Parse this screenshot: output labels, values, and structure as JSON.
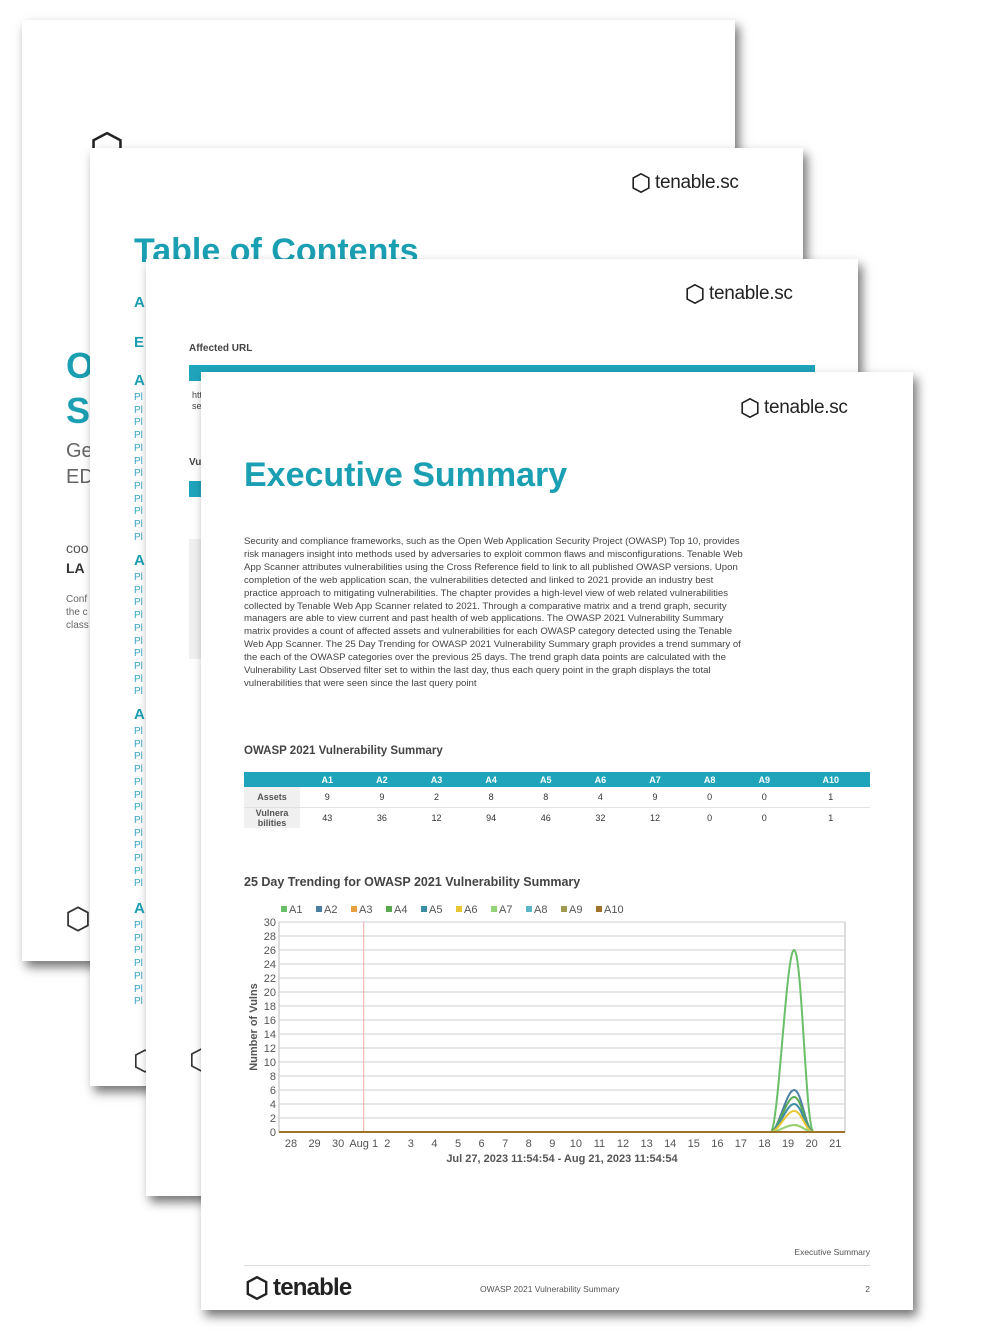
{
  "brand": {
    "name": "tenable.sc",
    "footer_name": "tenable",
    "accent": "#1fa4bb",
    "title_color": "#1b9fb3"
  },
  "page_cover": {
    "letters": [
      "O",
      "S"
    ],
    "subtitle_fragments": [
      "Ge",
      "ED"
    ],
    "meta_fragments": [
      "coo",
      "LA"
    ],
    "footer_fragments": [
      "Conf",
      "the c",
      "class"
    ]
  },
  "page_toc": {
    "heading": "Table of Contents",
    "letters": [
      "A",
      "E",
      "A",
      "A",
      "A",
      "A"
    ],
    "item_prefix": "Pl"
  },
  "page_detail": {
    "section_label": "Affected URL",
    "row_prefixes": [
      "htt",
      "se"
    ],
    "vul_fragment": "Vu"
  },
  "page_exec": {
    "title": "Executive Summary",
    "body": "Security and compliance frameworks, such as the Open Web Application Security Project (OWASP) Top 10, provides risk managers insight into methods used by adversaries to exploit common flaws and misconfigurations. Tenable Web App Scanner attributes vulnerabilities using the Cross Reference field to link to all published OWASP versions. Upon completion of the web application scan, the vulnerabilities detected and linked to 2021 provide an industry best practice approach to mitigating vulnerabilities. The chapter provides a high-level view of web related vulnerabilities collected by Tenable Web App Scanner related to 2021. Through a comparative matrix and a trend graph, security managers are able to view current and past health of web applications. The OWASP 2021 Vulnerability Summary matrix provides a count of affected assets and vulnerabilities for each OWASP category detected using the Tenable Web App Scanner. The 25 Day Trending for OWASP 2021 Vulnerability Summary graph provides a trend summary of the each of the OWASP categories over the previous 25 days. The trend graph data points are calculated with the Vulnerability Last Observed filter set to within the last day, thus each query point in the graph displays the total vulnerabilities that were seen since the last query point",
    "matrix_title": "OWASP 2021 Vulnerability Summary",
    "matrix": {
      "columns": [
        "A1",
        "A2",
        "A3",
        "A4",
        "A5",
        "A6",
        "A7",
        "A8",
        "A9",
        "A10"
      ],
      "rows": [
        {
          "label": "Assets",
          "values": [
            "9",
            "9",
            "2",
            "8",
            "8",
            "4",
            "9",
            "0",
            "0",
            "1"
          ]
        },
        {
          "label": "Vulnera bilities",
          "values": [
            "43",
            "36",
            "12",
            "94",
            "46",
            "32",
            "12",
            "0",
            "0",
            "1"
          ]
        }
      ]
    },
    "chart_title": "25 Day Trending for OWASP 2021 Vulnerability Summary",
    "footer_section": "Executive Summary",
    "footer_doc": "OWASP 2021 Vulnerability Summary",
    "page_number": "2"
  },
  "chart_data": {
    "type": "line",
    "title": "25 Day Trending for OWASP 2021 Vulnerability Summary",
    "xlabel": "Jul 27, 2023 11:54:54 - Aug 21, 2023 11:54:54",
    "ylabel": "Number of Vulns",
    "ylim": [
      0,
      30
    ],
    "yticks": [
      0,
      2,
      4,
      6,
      8,
      10,
      12,
      14,
      16,
      18,
      20,
      22,
      24,
      26,
      28,
      30
    ],
    "x_ticks": [
      "28",
      "29",
      "30",
      "Aug 1",
      "2",
      "3",
      "4",
      "5",
      "6",
      "7",
      "8",
      "9",
      "10",
      "11",
      "12",
      "13",
      "14",
      "15",
      "16",
      "17",
      "18",
      "19",
      "20",
      "21"
    ],
    "marker_x": "Aug 1",
    "grid": true,
    "legend_position": "top",
    "series": [
      {
        "name": "A1",
        "color": "#6abf69",
        "peak_day": "19",
        "peak_value": 26
      },
      {
        "name": "A2",
        "color": "#4a7fa3",
        "peak_day": "19",
        "peak_value": 6
      },
      {
        "name": "A3",
        "color": "#e6a23c",
        "peak_day": "19",
        "peak_value": 1
      },
      {
        "name": "A4",
        "color": "#5aa850",
        "peak_day": "19",
        "peak_value": 5
      },
      {
        "name": "A5",
        "color": "#3c8ea6",
        "peak_day": "19",
        "peak_value": 4
      },
      {
        "name": "A6",
        "color": "#e8c531",
        "peak_day": "19",
        "peak_value": 3
      },
      {
        "name": "A7",
        "color": "#95d476",
        "peak_day": "19",
        "peak_value": 1
      },
      {
        "name": "A8",
        "color": "#5bb5c8",
        "peak_day": "19",
        "peak_value": 0
      },
      {
        "name": "A9",
        "color": "#a39a52",
        "peak_day": "19",
        "peak_value": 0
      },
      {
        "name": "A10",
        "color": "#a07428",
        "peak_day": "19",
        "peak_value": 0
      }
    ]
  }
}
